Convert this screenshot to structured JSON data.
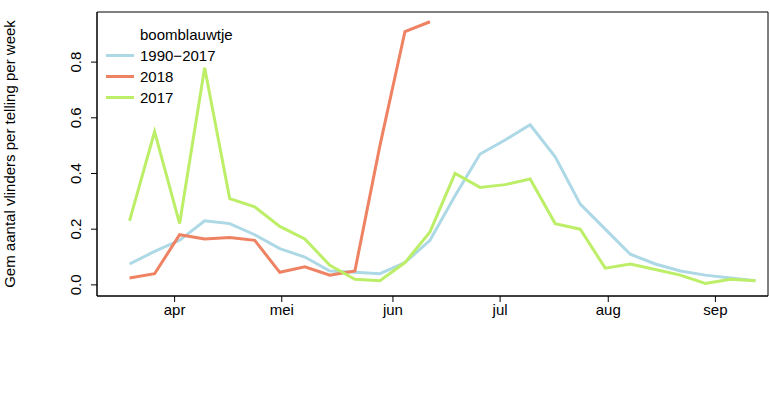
{
  "chart_data": {
    "type": "line",
    "y_label": "Gem aantal vlinders per telling per week",
    "legend_title": "boomblauwtje",
    "legend": "upper left",
    "x": [
      13,
      14,
      15,
      16,
      17,
      18,
      19,
      20,
      21,
      22,
      23,
      24,
      25,
      26,
      27,
      28,
      29,
      30,
      31,
      32,
      33,
      34,
      35,
      36,
      37,
      38
    ],
    "xlim": [
      11.7,
      38.5
    ],
    "xticks": [
      {
        "value": 14.8,
        "label": "apr"
      },
      {
        "value": 19.08,
        "label": "mei"
      },
      {
        "value": 23.52,
        "label": "jun"
      },
      {
        "value": 27.8,
        "label": "jul"
      },
      {
        "value": 32.12,
        "label": "aug"
      },
      {
        "value": 36.4,
        "label": "sep"
      }
    ],
    "ylim": [
      -0.04,
      0.98
    ],
    "yticks": [
      {
        "value": 0,
        "label": "0.0"
      },
      {
        "value": 0.2,
        "label": "0.2"
      },
      {
        "value": 0.4,
        "label": "0.4"
      },
      {
        "value": 0.6,
        "label": "0.6"
      },
      {
        "value": 0.8,
        "label": "0.8"
      }
    ],
    "series": [
      {
        "name": "1990−2017",
        "color": "#add8e6",
        "values": [
          0.075,
          0.12,
          0.16,
          0.23,
          0.22,
          0.18,
          0.13,
          0.1,
          0.05,
          0.045,
          0.04,
          0.08,
          0.16,
          0.32,
          0.47,
          0.52,
          0.575,
          0.46,
          0.29,
          0.2,
          0.11,
          0.075,
          0.05,
          0.035,
          0.025,
          0.015
        ]
      },
      {
        "name": "2018",
        "color": "#ee8262",
        "values": [
          0.025,
          0.04,
          0.18,
          0.165,
          0.17,
          0.16,
          0.045,
          0.065,
          0.035,
          0.05,
          0.5,
          0.91,
          0.945,
          null,
          null,
          null,
          null,
          null,
          null,
          null,
          null,
          null,
          null,
          null,
          null,
          null
        ]
      },
      {
        "name": "2017",
        "color": "#bcee68",
        "values": [
          0.23,
          0.55,
          0.22,
          0.78,
          0.31,
          0.28,
          0.21,
          0.165,
          0.07,
          0.02,
          0.015,
          0.08,
          0.19,
          0.4,
          0.35,
          0.36,
          0.38,
          0.22,
          0.2,
          0.06,
          0.075,
          0.055,
          0.035,
          0.005,
          0.02,
          0.015
        ]
      }
    ]
  }
}
